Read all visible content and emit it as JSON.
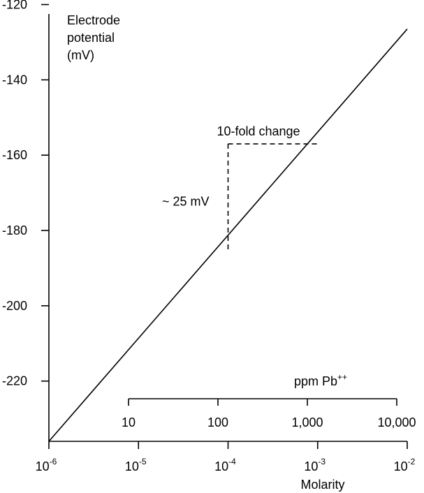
{
  "chart_data": {
    "type": "line",
    "ylabel_lines": [
      "Electrode",
      "potential",
      "(mV)"
    ],
    "xlabel": "Molarity",
    "y_ticks": [
      "-120",
      "-140",
      "-160",
      "-180",
      "-200",
      "-220"
    ],
    "y_tick_values": [
      -120,
      -140,
      -160,
      -180,
      -200,
      -220
    ],
    "ylim": [
      -122.5,
      -236
    ],
    "x_scale": "log",
    "xlim": [
      1e-06,
      0.01
    ],
    "x_ticks": [
      {
        "base": "10",
        "exp": "-6",
        "value": 1e-06
      },
      {
        "base": "10",
        "exp": "-5",
        "value": 1e-05
      },
      {
        "base": "10",
        "exp": "-4",
        "value": 0.0001
      },
      {
        "base": "10",
        "exp": "-3",
        "value": 0.001
      },
      {
        "base": "10",
        "exp": "-2",
        "value": 0.01
      }
    ],
    "secondary_axis": {
      "label_base": "ppm Pb",
      "label_sup": "++",
      "ticks": [
        {
          "label": "10",
          "value": 10
        },
        {
          "label": "100",
          "value": 100
        },
        {
          "label": "1,000",
          "value": 1000
        },
        {
          "label": "10,000",
          "value": 10000
        }
      ]
    },
    "series": [
      {
        "x": [
          1e-06,
          0.01
        ],
        "y": [
          -236,
          -126.5
        ]
      }
    ],
    "annotations": {
      "step_label": "10-fold change",
      "rise_label": "~ 25 mV",
      "step_from_x": 0.0001,
      "step_to_x": 0.001,
      "step_y_low": -185,
      "step_y_high": -157
    },
    "grid": false
  }
}
